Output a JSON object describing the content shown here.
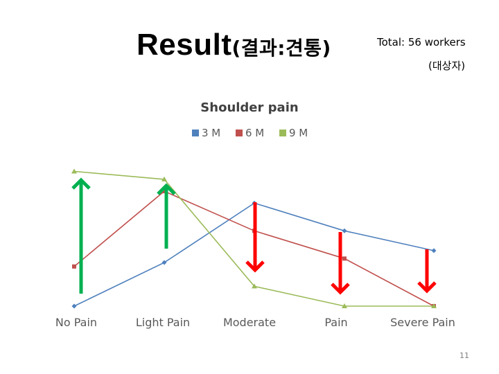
{
  "slide": {
    "title_main": "Result",
    "title_sub": "(결과:견통)",
    "total": "Total: 56 workers",
    "subject": "(대상자)",
    "page_number": "11"
  },
  "colors": {
    "series_3m": "#4f81bd",
    "series_6m": "#c0504d",
    "series_9m": "#9bbb59",
    "arrow_up": "#00b050",
    "arrow_down": "#ff0000"
  },
  "annotations": {
    "arrows": [
      {
        "category": "No Pain",
        "direction": "up"
      },
      {
        "category": "Light Pain",
        "direction": "up"
      },
      {
        "category": "Moderate",
        "direction": "down"
      },
      {
        "category": "Pain",
        "direction": "down"
      },
      {
        "category": "Severe Pain",
        "direction": "down"
      }
    ]
  },
  "chart_data": {
    "type": "line",
    "title": "Shoulder pain",
    "xlabel": "",
    "ylabel": "",
    "categories": [
      "No Pain",
      "Light Pain",
      "Moderate",
      "Pain",
      "Severe Pain"
    ],
    "series": [
      {
        "name": "3 M",
        "color": "#4f81bd",
        "marker": "diamond",
        "values": [
          0,
          11,
          26,
          19,
          14
        ]
      },
      {
        "name": "6 M",
        "color": "#c0504d",
        "marker": "square",
        "values": [
          10,
          29,
          19,
          12,
          0
        ]
      },
      {
        "name": "9 M",
        "color": "#9bbb59",
        "marker": "triangle",
        "values": [
          34,
          32,
          5,
          0,
          0
        ]
      }
    ],
    "ylim": [
      0,
      36
    ],
    "grid": false,
    "legend_position": "top"
  }
}
